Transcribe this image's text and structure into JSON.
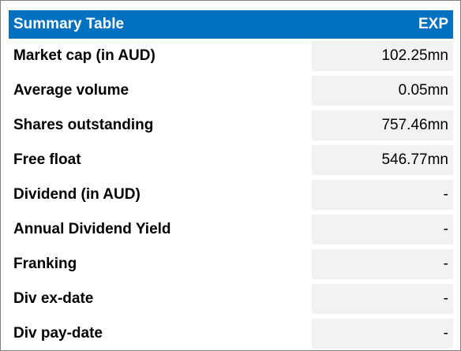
{
  "table": {
    "title": "Summary Table",
    "ticker": "EXP",
    "colors": {
      "header_bg": "#0070c0",
      "header_text": "#ffffff",
      "value_bg": "#f2f2f2"
    },
    "rows": [
      {
        "label": "Market cap (in AUD)",
        "value": "102.25mn"
      },
      {
        "label": "Average volume",
        "value": "0.05mn"
      },
      {
        "label": "Shares outstanding",
        "value": "757.46mn"
      },
      {
        "label": "Free float",
        "value": "546.77mn"
      },
      {
        "label": "Dividend (in AUD)",
        "value": "-"
      },
      {
        "label": "Annual Dividend Yield",
        "value": "-"
      },
      {
        "label": "Franking",
        "value": "-"
      },
      {
        "label": "Div ex-date",
        "value": "-"
      },
      {
        "label": "Div pay-date",
        "value": "-"
      }
    ]
  }
}
